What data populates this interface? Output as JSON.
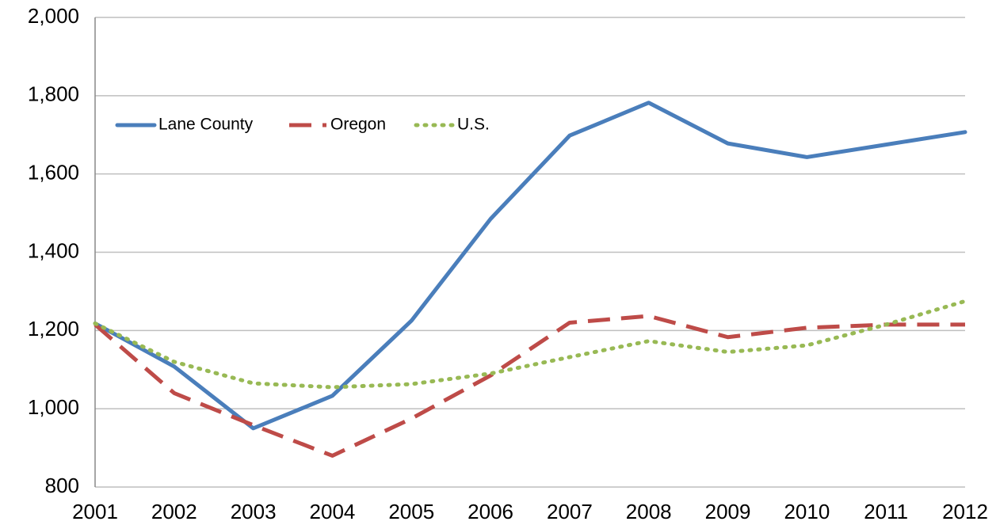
{
  "chart_data": {
    "type": "line",
    "categories": [
      "2001",
      "2002",
      "2003",
      "2004",
      "2005",
      "2006",
      "2007",
      "2008",
      "2009",
      "2010",
      "2011",
      "2012"
    ],
    "series": [
      {
        "name": "Lane County",
        "color": "#4a7ebb",
        "dash": "solid",
        "values": [
          1218,
          1108,
          950,
          1033,
          1225,
          1485,
          1698,
          1782,
          1678,
          1643,
          1675,
          1707
        ]
      },
      {
        "name": "Oregon",
        "color": "#be4b48",
        "dash": "dashed",
        "values": [
          1215,
          1040,
          958,
          880,
          975,
          1085,
          1220,
          1237,
          1183,
          1207,
          1215,
          1215
        ]
      },
      {
        "name": "U.S.",
        "color": "#98b954",
        "dash": "dotted",
        "values": [
          1218,
          1120,
          1065,
          1055,
          1063,
          1090,
          1132,
          1173,
          1145,
          1162,
          1215,
          1275
        ]
      }
    ],
    "ylim": [
      800,
      2000
    ],
    "yticks": [
      {
        "value": 800,
        "label": "800"
      },
      {
        "value": 1000,
        "label": "1,000"
      },
      {
        "value": 1200,
        "label": "1,200"
      },
      {
        "value": 1400,
        "label": "1,400"
      },
      {
        "value": 1600,
        "label": "1,600"
      },
      {
        "value": 1800,
        "label": "1,800"
      },
      {
        "value": 2000,
        "label": "2,000"
      }
    ],
    "grid": true,
    "legend": "top-left"
  }
}
